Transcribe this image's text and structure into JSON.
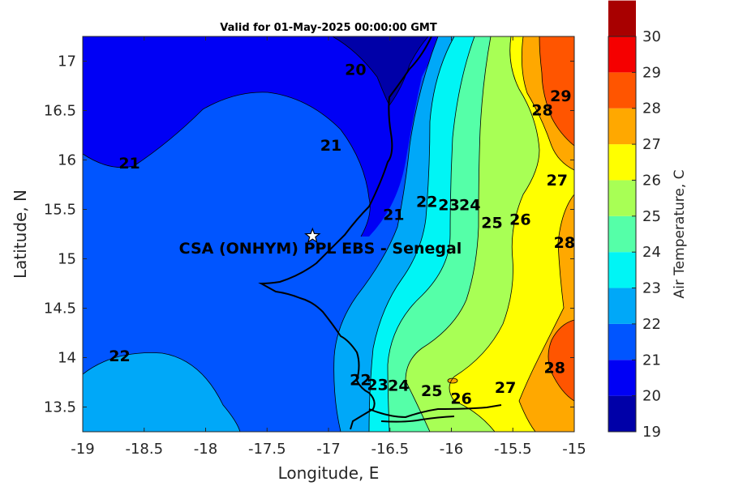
{
  "title": "Valid for 01-May-2025 00:00:00 GMT",
  "chart_data": {
    "type": "contour",
    "xlabel": "Longitude, E",
    "ylabel": "Latitude, N",
    "xlim": [
      -19,
      -15
    ],
    "ylim": [
      13.25,
      17.25
    ],
    "xticks": [
      "-19",
      "-18.5",
      "-18",
      "-17.5",
      "-17",
      "-16.5",
      "-16",
      "-15.5",
      "-15"
    ],
    "yticks": [
      "13.5",
      "14",
      "14.5",
      "15",
      "15.5",
      "16",
      "16.5",
      "17"
    ],
    "colorbar": {
      "label": "Air Temperature, C",
      "ticks": [
        "19",
        "20",
        "21",
        "22",
        "23",
        "24",
        "25",
        "26",
        "27",
        "28",
        "29",
        "30"
      ],
      "colors": [
        "#0000a8",
        "#0000f5",
        "#0055ff",
        "#00a8f8",
        "#00f5f5",
        "#55ffa8",
        "#a8ff55",
        "#ffff00",
        "#ffa800",
        "#ff5500",
        "#f50000",
        "#a80000"
      ]
    },
    "contour_labels": [
      {
        "text": "20",
        "lon": -16.78,
        "lat": 16.92
      },
      {
        "text": "21",
        "lon": -18.62,
        "lat": 15.97
      },
      {
        "text": "21",
        "lon": -16.98,
        "lat": 16.15
      },
      {
        "text": "21",
        "lon": -16.47,
        "lat": 15.45
      },
      {
        "text": "22",
        "lon": -18.7,
        "lat": 14.02
      },
      {
        "text": "22",
        "lon": -16.2,
        "lat": 15.58
      },
      {
        "text": "22",
        "lon": -16.74,
        "lat": 13.78
      },
      {
        "text": "23",
        "lon": -16.02,
        "lat": 15.55
      },
      {
        "text": "23",
        "lon": -16.6,
        "lat": 13.73
      },
      {
        "text": "24",
        "lon": -15.85,
        "lat": 15.55
      },
      {
        "text": "24",
        "lon": -16.43,
        "lat": 13.72
      },
      {
        "text": "25",
        "lon": -15.67,
        "lat": 15.37
      },
      {
        "text": "25",
        "lon": -16.16,
        "lat": 13.67
      },
      {
        "text": "26",
        "lon": -15.44,
        "lat": 15.4
      },
      {
        "text": "26",
        "lon": -15.92,
        "lat": 13.59
      },
      {
        "text": "27",
        "lon": -15.14,
        "lat": 15.8
      },
      {
        "text": "27",
        "lon": -15.56,
        "lat": 13.7
      },
      {
        "text": "28",
        "lon": -15.26,
        "lat": 16.51
      },
      {
        "text": "28",
        "lon": -15.08,
        "lat": 15.17
      },
      {
        "text": "28",
        "lon": -15.16,
        "lat": 13.9
      },
      {
        "text": "29",
        "lon": -15.11,
        "lat": 16.65
      }
    ],
    "site": {
      "name": "CSA (ONHYM) PPL EBS  - Senegal",
      "lon": -17.13,
      "lat": 15.23,
      "marker": "star"
    }
  }
}
